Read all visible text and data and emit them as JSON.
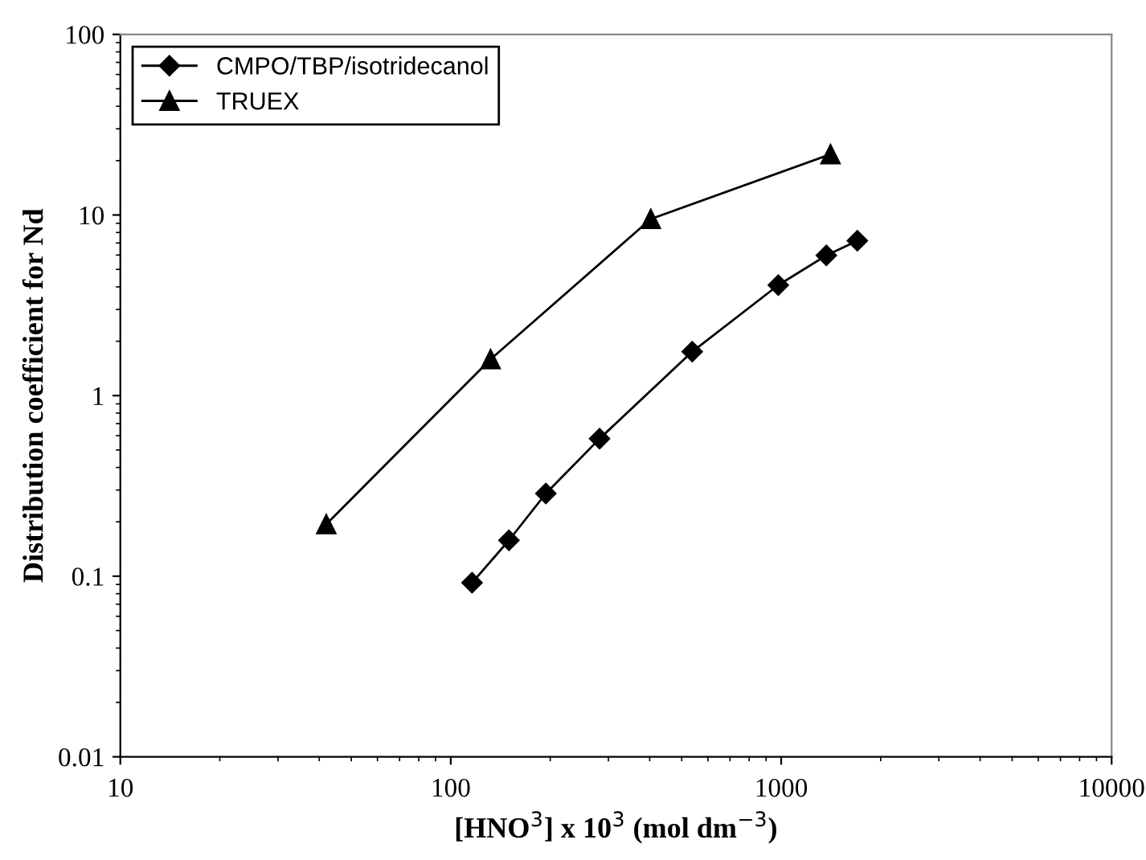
{
  "chart_data": {
    "type": "line",
    "xlabel": "[HNO$^{3}$] x 10$^{3}$ (mol dm$^{−3}$)",
    "ylabel": "Distribution coefficient for Nd",
    "log": "xy",
    "xlim": [
      10,
      10000
    ],
    "xticks": [
      10,
      100,
      1000,
      10000
    ],
    "ylim": [
      0.01,
      100
    ],
    "yticks": [
      0.01,
      0.1,
      1,
      10,
      100
    ],
    "legend": "top left",
    "grid": false,
    "series": [
      {
        "name": "CMPO/TBP/isotridecanol",
        "color": "#000000",
        "marker": "diamond",
        "x": [
          116,
          150,
          194,
          282,
          538,
          980,
          1370,
          1700
        ],
        "values": [
          0.092,
          0.158,
          0.287,
          0.577,
          1.75,
          4.09,
          5.98,
          7.2
        ]
      },
      {
        "name": "TRUEX",
        "color": "#000000",
        "marker": "triangle",
        "x": [
          42,
          132,
          403,
          1410
        ],
        "values": [
          0.194,
          1.59,
          9.5,
          21.7
        ]
      }
    ]
  }
}
